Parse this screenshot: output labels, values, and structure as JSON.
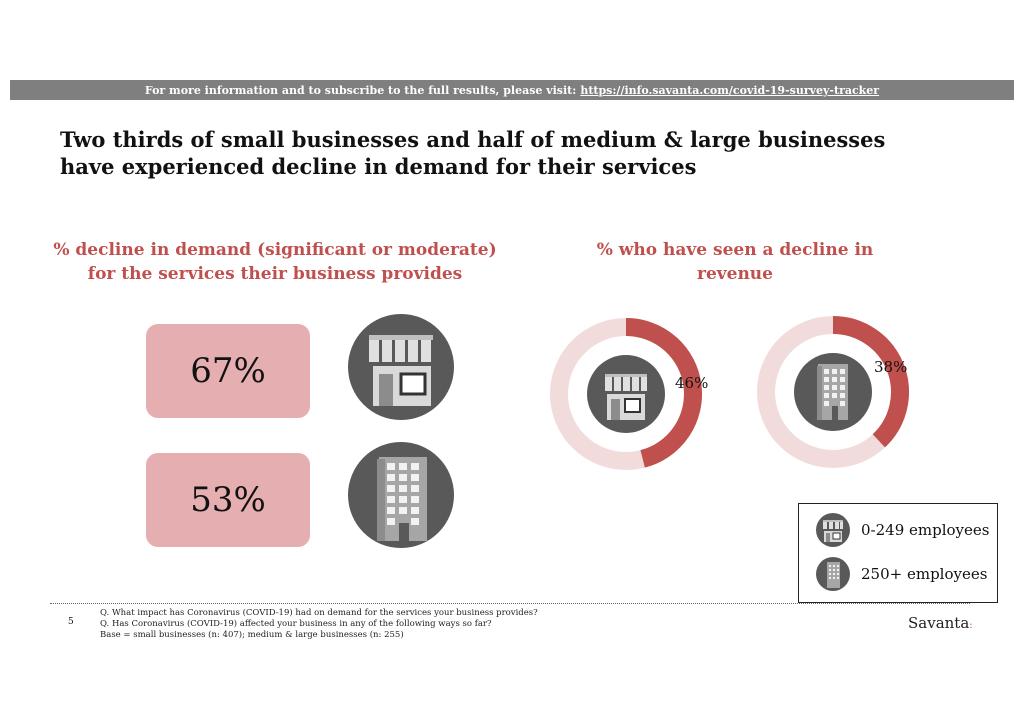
{
  "banner": {
    "text": "For more information and to subscribe to the full results, please visit:",
    "link": "https://info.savanta.com/covid-19-survey-tracker"
  },
  "headline": {
    "line1": "Two thirds of small businesses and half of medium & large businesses",
    "line2": "have experienced decline in demand for their services"
  },
  "left_panel": {
    "title_line1": "% decline in demand (significant or moderate)",
    "title_line2": "for the services their business provides",
    "small_value": "67%",
    "large_value": "53%"
  },
  "right_panel": {
    "title_line1": "% who have seen a decline in",
    "title_line2": "revenue",
    "small_label": "46%",
    "large_label": "38%"
  },
  "legend": {
    "small": "0-249 employees",
    "large": "250+ employees"
  },
  "footer": {
    "page_number": "5",
    "note1": "Q. What impact has Coronavirus (COVID-19) had on demand for the services your business provides?",
    "note2": "Q. Has Coronavirus (COVID-19) affected your business in any of the following ways so far?",
    "note3": "Base = small businesses (n: 407); medium & large businesses (n: 255)",
    "brand": "Savanta",
    "brand_mark": ":"
  },
  "colors": {
    "accent": "#c0504d",
    "box_fill": "#e5aeb0",
    "donut_track": "#f2dcdb",
    "icon_dark": "#595959"
  },
  "chart_data": [
    {
      "type": "bar",
      "title": "% decline in demand (significant or moderate) for the services their business provides",
      "categories": [
        "0-249 employees",
        "250+ employees"
      ],
      "values": [
        67,
        53
      ],
      "unit": "%"
    },
    {
      "type": "pie",
      "title": "% who have seen a decline in revenue",
      "series": [
        {
          "name": "0-249 employees",
          "values": [
            46,
            54
          ]
        },
        {
          "name": "250+ employees",
          "values": [
            38,
            62
          ]
        }
      ],
      "unit": "%"
    }
  ]
}
